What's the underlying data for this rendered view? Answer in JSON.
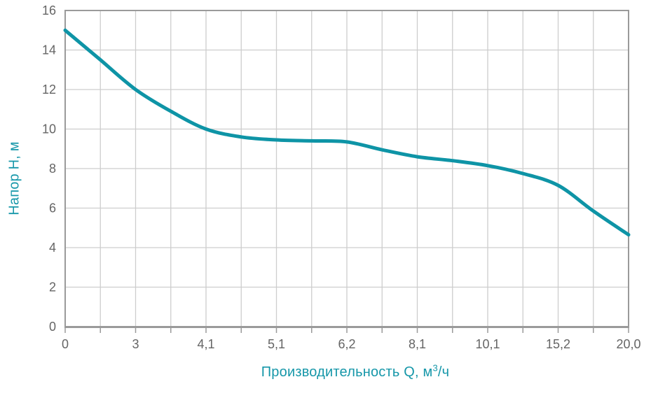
{
  "chart_data": {
    "type": "line",
    "title": "",
    "xlabel": "Производительность Q, м³/ч",
    "xlabel_parts": {
      "prefix": "Производительность Q, м",
      "superscript": "3",
      "suffix": "/ч"
    },
    "ylabel": "Напор H, м",
    "x_tick_labels": [
      "0",
      "3",
      "4,1",
      "5,1",
      "6,2",
      "8,1",
      "10,1",
      "15,2",
      "20,0"
    ],
    "y_ticks": [
      0,
      2,
      4,
      6,
      8,
      10,
      12,
      14,
      16
    ],
    "ylim": [
      0,
      16
    ],
    "grid": true,
    "legend": "none",
    "x_axis_layout": "labels equally spaced (non-linear scale), minor gridline and tick midway between labels",
    "series": [
      {
        "values_at_labels": [
          15.0,
          12.0,
          10.0,
          9.45,
          9.35,
          8.6,
          8.15,
          7.15,
          4.65
        ],
        "curve_samples_label_index": [
          0,
          0.5,
          1,
          1.5,
          2,
          2.5,
          3,
          3.5,
          4,
          4.5,
          5,
          5.5,
          6,
          6.5,
          7,
          7.5,
          8
        ],
        "curve_samples_h": [
          15.0,
          13.5,
          12.0,
          10.9,
          10.0,
          9.6,
          9.45,
          9.4,
          9.35,
          8.95,
          8.6,
          8.4,
          8.15,
          7.75,
          7.15,
          5.85,
          4.65
        ]
      }
    ],
    "colors": {
      "curve": "#0e94a6",
      "axis_title_text": "#1697a9",
      "grid_line": "#cdcdcd",
      "axis_border": "#9a9a9a",
      "tick_label_text": "#656565",
      "background": "#ffffff"
    }
  }
}
